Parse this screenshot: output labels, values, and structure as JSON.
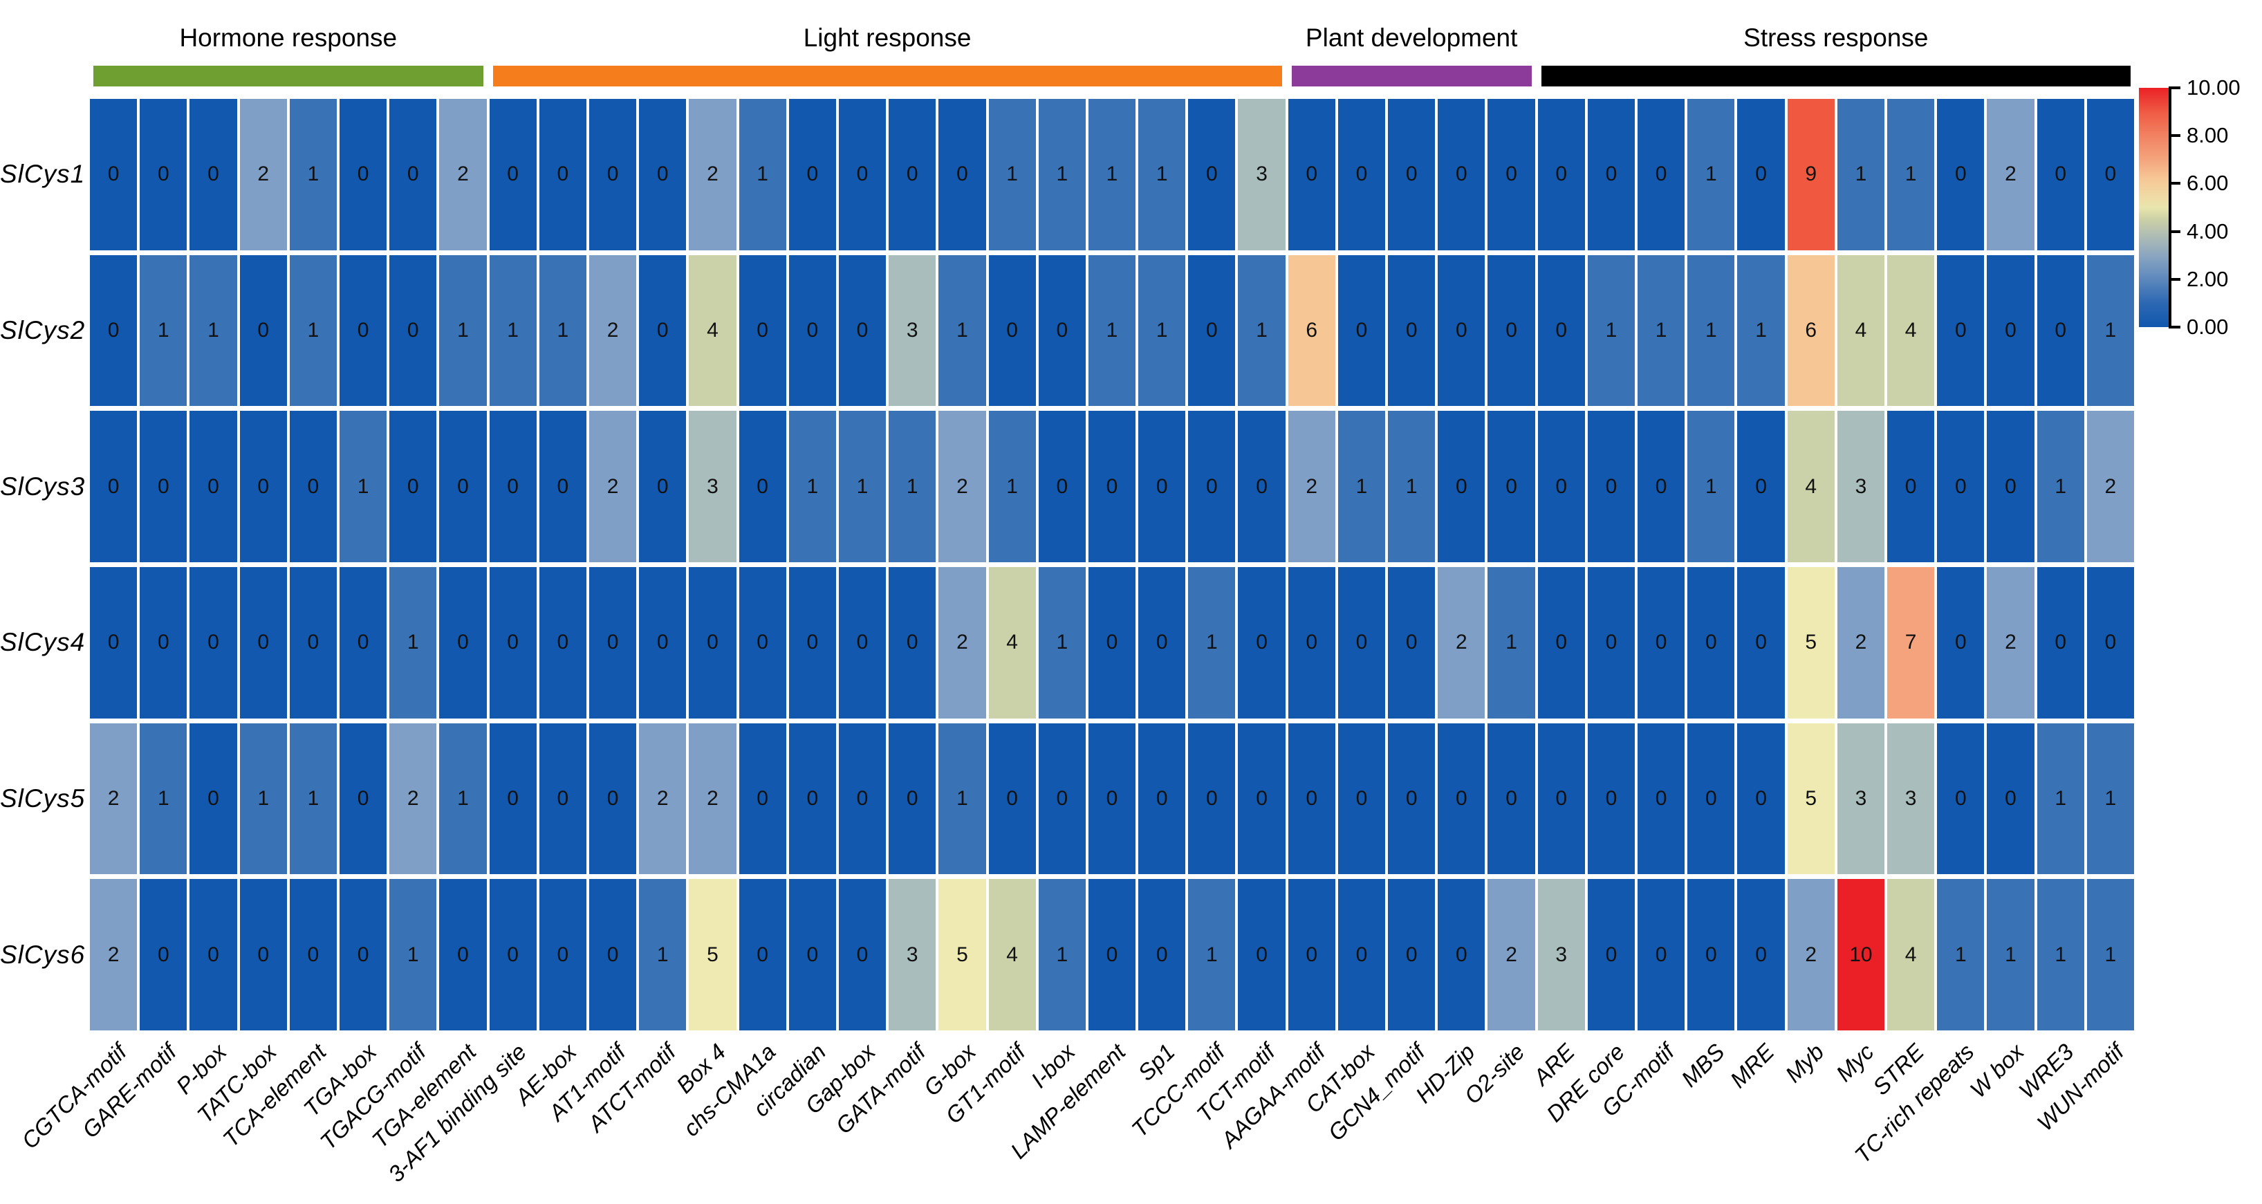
{
  "chart_data": {
    "type": "heatmap",
    "rows": [
      "SlCys1",
      "SlCys2",
      "SlCys3",
      "SlCys4",
      "SlCys5",
      "SlCys6"
    ],
    "columns": [
      "CGTCA-motif",
      "GARE-motif",
      "P-box",
      "TATC-box",
      "TCA-element",
      "TGA-box",
      "TGACG-motif",
      "TGA-element",
      "3-AF1 binding site",
      "AE-box",
      "AT1-motif",
      "ATCT-motif",
      "Box 4",
      "chs-CMA1a",
      "circadian",
      "Gap-box",
      "GATA-motif",
      "G-box",
      "GT1-motif",
      "I-box",
      "LAMP-element",
      "Sp1",
      "TCCC-motif",
      "TCT-motif",
      "AAGAA-motif",
      "CAT-box",
      "GCN4_motif",
      "HD-Zip",
      "O2-site",
      "ARE",
      "DRE core",
      "GC-motif",
      "MBS",
      "MRE",
      "Myb",
      "Myc",
      "STRE",
      "TC-rich repeats",
      "W box",
      "WRE3",
      "WUN-motif"
    ],
    "column_groups": [
      {
        "label": "Hormone response",
        "color": "#6f9e31",
        "start": 1,
        "end": 8
      },
      {
        "label": "Light response",
        "color": "#f57d1b",
        "start": 9,
        "end": 24
      },
      {
        "label": "Plant development",
        "color": "#8d3b9b",
        "start": 25,
        "end": 29
      },
      {
        "label": "Stress response",
        "color": "#000000",
        "start": 30,
        "end": 41
      }
    ],
    "values": [
      [
        0,
        0,
        0,
        2,
        1,
        0,
        0,
        2,
        0,
        0,
        0,
        0,
        2,
        1,
        0,
        0,
        0,
        0,
        1,
        1,
        1,
        1,
        0,
        3,
        0,
        0,
        0,
        0,
        0,
        0,
        0,
        0,
        1,
        0,
        9,
        1,
        1,
        0,
        2,
        0,
        0
      ],
      [
        0,
        1,
        1,
        0,
        1,
        0,
        0,
        1,
        1,
        1,
        2,
        0,
        4,
        0,
        0,
        0,
        3,
        1,
        0,
        0,
        1,
        1,
        0,
        1,
        6,
        0,
        0,
        0,
        0,
        0,
        1,
        1,
        1,
        1,
        6,
        4,
        4,
        0,
        0,
        0,
        1
      ],
      [
        0,
        0,
        0,
        0,
        0,
        1,
        0,
        0,
        0,
        0,
        2,
        0,
        3,
        0,
        1,
        1,
        1,
        2,
        1,
        0,
        0,
        0,
        0,
        0,
        2,
        1,
        1,
        0,
        0,
        0,
        0,
        0,
        1,
        0,
        4,
        3,
        0,
        0,
        0,
        1,
        2
      ],
      [
        0,
        0,
        0,
        0,
        0,
        0,
        1,
        0,
        0,
        0,
        0,
        0,
        0,
        0,
        0,
        0,
        0,
        2,
        4,
        1,
        0,
        0,
        1,
        0,
        0,
        0,
        0,
        2,
        1,
        0,
        0,
        0,
        0,
        0,
        5,
        2,
        7,
        0,
        2,
        0,
        0
      ],
      [
        2,
        1,
        0,
        1,
        1,
        0,
        2,
        1,
        0,
        0,
        0,
        2,
        2,
        0,
        0,
        0,
        0,
        1,
        0,
        0,
        0,
        0,
        0,
        0,
        0,
        0,
        0,
        0,
        0,
        0,
        0,
        0,
        0,
        0,
        5,
        3,
        3,
        0,
        0,
        1,
        1
      ],
      [
        2,
        0,
        0,
        0,
        0,
        0,
        1,
        0,
        0,
        0,
        0,
        1,
        5,
        0,
        0,
        0,
        3,
        5,
        4,
        1,
        0,
        0,
        1,
        0,
        0,
        0,
        0,
        0,
        2,
        3,
        0,
        0,
        0,
        0,
        2,
        10,
        4,
        1,
        1,
        1,
        1
      ]
    ],
    "value_colors": {
      "0": "#1158ae",
      "1": "#3a72b6",
      "2": "#7f9fc6",
      "3": "#aabdbd",
      "4": "#cbd2a9",
      "5": "#eeeab1",
      "6": "#f6c795",
      "7": "#f4a37c",
      "8": "#f28a66",
      "9": "#f0593f",
      "10": "#eb2026"
    },
    "colorbar": {
      "min": 0,
      "max": 10,
      "tick_labels": [
        "10.00",
        "8.00",
        "6.00",
        "4.00",
        "2.00",
        "0.00"
      ],
      "orientation": "vertical",
      "position": "right"
    },
    "grid": "white cell separators",
    "legend_position": "right",
    "title": "",
    "xlabel": "",
    "ylabel": ""
  }
}
